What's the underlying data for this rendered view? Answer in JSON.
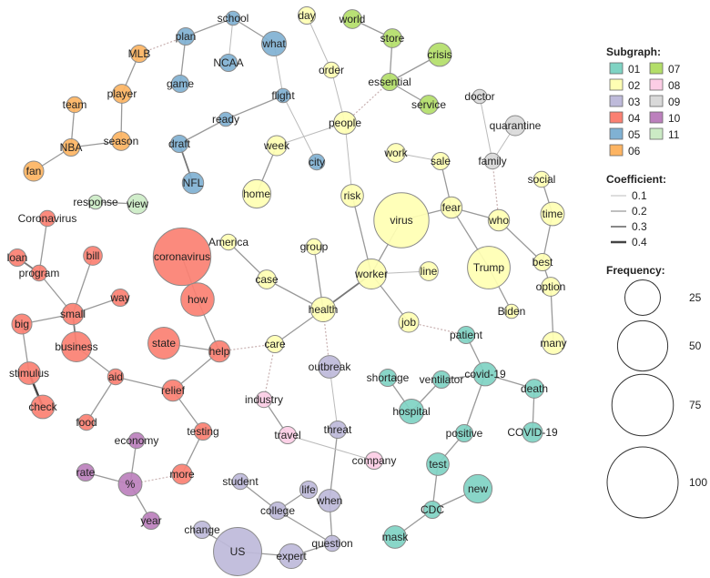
{
  "legend": {
    "subgraph_title": "Subgraph:",
    "subgraphs": [
      {
        "id": "01",
        "color": "#7fd3c3"
      },
      {
        "id": "02",
        "color": "#ffffb3"
      },
      {
        "id": "03",
        "color": "#bebada"
      },
      {
        "id": "04",
        "color": "#fb8072"
      },
      {
        "id": "05",
        "color": "#80b1d3"
      },
      {
        "id": "06",
        "color": "#fdb462"
      },
      {
        "id": "07",
        "color": "#b3de69"
      },
      {
        "id": "08",
        "color": "#fccde5"
      },
      {
        "id": "09",
        "color": "#d9d9d9"
      },
      {
        "id": "10",
        "color": "#bc80bd"
      },
      {
        "id": "11",
        "color": "#ccebc5"
      }
    ],
    "coefficient_title": "Coefficient:",
    "coefficients": [
      "0.1",
      "0.2",
      "0.3",
      "0.4"
    ],
    "frequency_title": "Frequency:",
    "frequencies": [
      "25",
      "50",
      "75",
      "100"
    ]
  },
  "nodes": [
    {
      "id": "school",
      "label": "school",
      "group": "05",
      "freq": 4
    },
    {
      "id": "plan",
      "label": "plan",
      "group": "05",
      "freq": 6
    },
    {
      "id": "what",
      "label": "what",
      "group": "05",
      "freq": 12
    },
    {
      "id": "ncaa",
      "label": "NCAA",
      "group": "05",
      "freq": 6
    },
    {
      "id": "game",
      "label": "game",
      "group": "05",
      "freq": 6
    },
    {
      "id": "flight",
      "label": "flight",
      "group": "05",
      "freq": 4
    },
    {
      "id": "ready",
      "label": "ready",
      "group": "05",
      "freq": 4
    },
    {
      "id": "draft",
      "label": "draft",
      "group": "05",
      "freq": 6
    },
    {
      "id": "nfl",
      "label": "NFL",
      "group": "05",
      "freq": 9
    },
    {
      "id": "city",
      "label": "city",
      "group": "05",
      "freq": 5
    },
    {
      "id": "mlb",
      "label": "MLB",
      "group": "06",
      "freq": 6
    },
    {
      "id": "player",
      "label": "player",
      "group": "06",
      "freq": 7
    },
    {
      "id": "team",
      "label": "team",
      "group": "06",
      "freq": 5
    },
    {
      "id": "season",
      "label": "season",
      "group": "06",
      "freq": 7
    },
    {
      "id": "nba",
      "label": "NBA",
      "group": "06",
      "freq": 6
    },
    {
      "id": "fan",
      "label": "fan",
      "group": "06",
      "freq": 8
    },
    {
      "id": "world",
      "label": "world",
      "group": "07",
      "freq": 7
    },
    {
      "id": "store",
      "label": "store",
      "group": "07",
      "freq": 7
    },
    {
      "id": "crisis",
      "label": "crisis",
      "group": "07",
      "freq": 11
    },
    {
      "id": "essential",
      "label": "essential",
      "group": "07",
      "freq": 6
    },
    {
      "id": "service",
      "label": "service",
      "group": "07",
      "freq": 7
    },
    {
      "id": "day",
      "label": "day",
      "group": "02",
      "freq": 6
    },
    {
      "id": "order",
      "label": "order",
      "group": "02",
      "freq": 5
    },
    {
      "id": "people",
      "label": "people",
      "group": "02",
      "freq": 10
    },
    {
      "id": "week",
      "label": "week",
      "group": "02",
      "freq": 8
    },
    {
      "id": "home",
      "label": "home",
      "group": "02",
      "freq": 16
    },
    {
      "id": "risk",
      "label": "risk",
      "group": "02",
      "freq": 10
    },
    {
      "id": "work",
      "label": "work",
      "group": "02",
      "freq": 7
    },
    {
      "id": "sale",
      "label": "sale",
      "group": "02",
      "freq": 6
    },
    {
      "id": "fear",
      "label": "fear",
      "group": "02",
      "freq": 9
    },
    {
      "id": "virus",
      "label": "virus",
      "group": "02",
      "freq": 60
    },
    {
      "id": "who",
      "label": "who",
      "group": "02",
      "freq": 9
    },
    {
      "id": "social",
      "label": "social",
      "group": "02",
      "freq": 5
    },
    {
      "id": "time",
      "label": "time",
      "group": "02",
      "freq": 11
    },
    {
      "id": "trump",
      "label": "Trump",
      "group": "02",
      "freq": 36
    },
    {
      "id": "best",
      "label": "best",
      "group": "02",
      "freq": 6
    },
    {
      "id": "option",
      "label": "option",
      "group": "02",
      "freq": 7
    },
    {
      "id": "biden",
      "label": "Biden",
      "group": "02",
      "freq": 4
    },
    {
      "id": "many",
      "label": "many",
      "group": "02",
      "freq": 10
    },
    {
      "id": "america",
      "label": "America",
      "group": "02",
      "freq": 5
    },
    {
      "id": "group",
      "label": "group",
      "group": "02",
      "freq": 5
    },
    {
      "id": "case",
      "label": "case",
      "group": "02",
      "freq": 7
    },
    {
      "id": "worker",
      "label": "worker",
      "group": "02",
      "freq": 18
    },
    {
      "id": "line",
      "label": "line",
      "group": "02",
      "freq": 7
    },
    {
      "id": "health",
      "label": "health",
      "group": "02",
      "freq": 12
    },
    {
      "id": "job",
      "label": "job",
      "group": "02",
      "freq": 8
    },
    {
      "id": "care",
      "label": "care",
      "group": "02",
      "freq": 6
    },
    {
      "id": "doctor",
      "label": "doctor",
      "group": "09",
      "freq": 4
    },
    {
      "id": "quarantine",
      "label": "quarantine",
      "group": "09",
      "freq": 8
    },
    {
      "id": "family",
      "label": "family",
      "group": "09",
      "freq": 5
    },
    {
      "id": "response",
      "label": "response",
      "group": "11",
      "freq": 4
    },
    {
      "id": "view",
      "label": "view",
      "group": "11",
      "freq": 8
    },
    {
      "id": "coronavirus_cap",
      "label": "Coronavirus",
      "group": "04",
      "freq": 5
    },
    {
      "id": "loan",
      "label": "loan",
      "group": "04",
      "freq": 6
    },
    {
      "id": "program",
      "label": "program",
      "group": "04",
      "freq": 5
    },
    {
      "id": "bill",
      "label": "bill",
      "group": "04",
      "freq": 7
    },
    {
      "id": "coronavirus",
      "label": "coronavirus",
      "group": "04",
      "freq": 66
    },
    {
      "id": "how",
      "label": "how",
      "group": "04",
      "freq": 22
    },
    {
      "id": "way",
      "label": "way",
      "group": "04",
      "freq": 6
    },
    {
      "id": "small",
      "label": "small",
      "group": "04",
      "freq": 9
    },
    {
      "id": "big",
      "label": "big",
      "group": "04",
      "freq": 8
    },
    {
      "id": "business",
      "label": "business",
      "group": "04",
      "freq": 18
    },
    {
      "id": "state",
      "label": "state",
      "group": "04",
      "freq": 20
    },
    {
      "id": "help",
      "label": "help",
      "group": "04",
      "freq": 9
    },
    {
      "id": "stimulus",
      "label": "stimulus",
      "group": "04",
      "freq": 10
    },
    {
      "id": "aid",
      "label": "aid",
      "group": "04",
      "freq": 5
    },
    {
      "id": "relief",
      "label": "relief",
      "group": "04",
      "freq": 9
    },
    {
      "id": "check",
      "label": "check",
      "group": "04",
      "freq": 11
    },
    {
      "id": "food",
      "label": "food",
      "group": "04",
      "freq": 5
    },
    {
      "id": "testing",
      "label": "testing",
      "group": "04",
      "freq": 6
    },
    {
      "id": "more",
      "label": "more",
      "group": "04",
      "freq": 8
    },
    {
      "id": "economy",
      "label": "economy",
      "group": "10",
      "freq": 5
    },
    {
      "id": "rate",
      "label": "rate",
      "group": "10",
      "freq": 6
    },
    {
      "id": "percent",
      "label": "%",
      "group": "10",
      "freq": 11
    },
    {
      "id": "year",
      "label": "year",
      "group": "10",
      "freq": 6
    },
    {
      "id": "outbreak",
      "label": "outbreak",
      "group": "03",
      "freq": 10
    },
    {
      "id": "threat",
      "label": "threat",
      "group": "03",
      "freq": 6
    },
    {
      "id": "student",
      "label": "student",
      "group": "03",
      "freq": 5
    },
    {
      "id": "life",
      "label": "life",
      "group": "03",
      "freq": 6
    },
    {
      "id": "college",
      "label": "college",
      "group": "03",
      "freq": 6
    },
    {
      "id": "when",
      "label": "when",
      "group": "03",
      "freq": 10
    },
    {
      "id": "change",
      "label": "change",
      "group": "03",
      "freq": 6
    },
    {
      "id": "us",
      "label": "US",
      "group": "03",
      "freq": 46
    },
    {
      "id": "expert",
      "label": "expert",
      "group": "03",
      "freq": 12
    },
    {
      "id": "question",
      "label": "question",
      "group": "03",
      "freq": 5
    },
    {
      "id": "industry",
      "label": "industry",
      "group": "08",
      "freq": 5
    },
    {
      "id": "travel",
      "label": "travel",
      "group": "08",
      "freq": 6
    },
    {
      "id": "company",
      "label": "company",
      "group": "08",
      "freq": 6
    },
    {
      "id": "patient",
      "label": "patient",
      "group": "01",
      "freq": 6
    },
    {
      "id": "shortage",
      "label": "shortage",
      "group": "01",
      "freq": 6
    },
    {
      "id": "ventilator",
      "label": "ventilator",
      "group": "01",
      "freq": 6
    },
    {
      "id": "covid19",
      "label": "covid-19",
      "group": "01",
      "freq": 11
    },
    {
      "id": "death",
      "label": "death",
      "group": "01",
      "freq": 7
    },
    {
      "id": "hospital",
      "label": "hospital",
      "group": "01",
      "freq": 12
    },
    {
      "id": "positive",
      "label": "positive",
      "group": "01",
      "freq": 6
    },
    {
      "id": "covid19_cap",
      "label": "COVID-19",
      "group": "01",
      "freq": 8
    },
    {
      "id": "test",
      "label": "test",
      "group": "01",
      "freq": 10
    },
    {
      "id": "new",
      "label": "new",
      "group": "01",
      "freq": 16
    },
    {
      "id": "cdc",
      "label": "CDC",
      "group": "01",
      "freq": 6
    },
    {
      "id": "mask",
      "label": "mask",
      "group": "01",
      "freq": 10
    }
  ],
  "edges": [
    {
      "source": "school",
      "target": "plan",
      "coef": 0.2
    },
    {
      "source": "school",
      "target": "what",
      "coef": 0.2
    },
    {
      "source": "school",
      "target": "ncaa",
      "coef": 0.1
    },
    {
      "source": "plan",
      "target": "game",
      "coef": 0.2
    },
    {
      "source": "plan",
      "target": "mlb",
      "coef": 0.1,
      "dotted": true
    },
    {
      "source": "what",
      "target": "flight",
      "coef": 0.1
    },
    {
      "source": "flight",
      "target": "ready",
      "coef": 0.2
    },
    {
      "source": "flight",
      "target": "city",
      "coef": 0.1
    },
    {
      "source": "ready",
      "target": "draft",
      "coef": 0.2
    },
    {
      "source": "draft",
      "target": "nfl",
      "coef": 0.3
    },
    {
      "source": "mlb",
      "target": "player",
      "coef": 0.2
    },
    {
      "source": "player",
      "target": "season",
      "coef": 0.2
    },
    {
      "source": "team",
      "target": "nba",
      "coef": 0.2
    },
    {
      "source": "season",
      "target": "nba",
      "coef": 0.2
    },
    {
      "source": "nba",
      "target": "fan",
      "coef": 0.2
    },
    {
      "source": "world",
      "target": "store",
      "coef": 0.2
    },
    {
      "source": "store",
      "target": "essential",
      "coef": 0.2
    },
    {
      "source": "crisis",
      "target": "essential",
      "coef": 0.2
    },
    {
      "source": "essential",
      "target": "service",
      "coef": 0.2
    },
    {
      "source": "essential",
      "target": "people",
      "coef": 0.1,
      "dotted": true
    },
    {
      "source": "day",
      "target": "order",
      "coef": 0.1
    },
    {
      "source": "order",
      "target": "people",
      "coef": 0.1
    },
    {
      "source": "people",
      "target": "week",
      "coef": 0.1
    },
    {
      "source": "people",
      "target": "risk",
      "coef": 0.1
    },
    {
      "source": "week",
      "target": "home",
      "coef": 0.2
    },
    {
      "source": "risk",
      "target": "worker",
      "coef": 0.2
    },
    {
      "source": "work",
      "target": "sale",
      "coef": 0.1
    },
    {
      "source": "sale",
      "target": "fear",
      "coef": 0.2
    },
    {
      "source": "fear",
      "target": "virus",
      "coef": 0.2
    },
    {
      "source": "fear",
      "target": "who",
      "coef": 0.2
    },
    {
      "source": "fear",
      "target": "trump",
      "coef": 0.2
    },
    {
      "source": "who",
      "target": "best",
      "coef": 0.2
    },
    {
      "source": "who",
      "target": "family",
      "coef": 0.1,
      "dotted": true
    },
    {
      "source": "social",
      "target": "time",
      "coef": 0.2
    },
    {
      "source": "time",
      "target": "best",
      "coef": 0.2
    },
    {
      "source": "best",
      "target": "option",
      "coef": 0.2
    },
    {
      "source": "option",
      "target": "many",
      "coef": 0.2
    },
    {
      "source": "trump",
      "target": "biden",
      "coef": 0.2
    },
    {
      "source": "doctor",
      "target": "family",
      "coef": 0.1
    },
    {
      "source": "quarantine",
      "target": "family",
      "coef": 0.1
    },
    {
      "source": "response",
      "target": "view",
      "coef": 0.2
    },
    {
      "source": "america",
      "target": "case",
      "coef": 0.2
    },
    {
      "source": "case",
      "target": "health",
      "coef": 0.2
    },
    {
      "source": "group",
      "target": "health",
      "coef": 0.2
    },
    {
      "source": "virus",
      "target": "worker",
      "coef": 0.2
    },
    {
      "source": "worker",
      "target": "line",
      "coef": 0.1
    },
    {
      "source": "worker",
      "target": "health",
      "coef": 0.3
    },
    {
      "source": "worker",
      "target": "job",
      "coef": 0.2
    },
    {
      "source": "health",
      "target": "care",
      "coef": 0.2
    },
    {
      "source": "health",
      "target": "outbreak",
      "coef": 0.1,
      "dotted": true
    },
    {
      "source": "job",
      "target": "patient",
      "coef": 0.1,
      "dotted": true
    },
    {
      "source": "care",
      "target": "help",
      "coef": 0.1,
      "dotted": true
    },
    {
      "source": "care",
      "target": "industry",
      "coef": 0.1,
      "dotted": true
    },
    {
      "source": "coronavirus_cap",
      "target": "program",
      "coef": 0.2
    },
    {
      "source": "loan",
      "target": "program",
      "coef": 0.3
    },
    {
      "source": "program",
      "target": "small",
      "coef": 0.2
    },
    {
      "source": "bill",
      "target": "small",
      "coef": 0.2
    },
    {
      "source": "way",
      "target": "small",
      "coef": 0.2
    },
    {
      "source": "small",
      "target": "big",
      "coef": 0.2
    },
    {
      "source": "small",
      "target": "business",
      "coef": 0.3
    },
    {
      "source": "big",
      "target": "stimulus",
      "coef": 0.2
    },
    {
      "source": "business",
      "target": "aid",
      "coef": 0.2
    },
    {
      "source": "stimulus",
      "target": "check",
      "coef": 0.4
    },
    {
      "source": "coronavirus",
      "target": "how",
      "coef": 0.2
    },
    {
      "source": "how",
      "target": "help",
      "coef": 0.2
    },
    {
      "source": "state",
      "target": "help",
      "coef": 0.2
    },
    {
      "source": "help",
      "target": "relief",
      "coef": 0.2
    },
    {
      "source": "aid",
      "target": "relief",
      "coef": 0.2
    },
    {
      "source": "aid",
      "target": "food",
      "coef": 0.2
    },
    {
      "source": "relief",
      "target": "testing",
      "coef": 0.2
    },
    {
      "source": "testing",
      "target": "more",
      "coef": 0.2
    },
    {
      "source": "more",
      "target": "percent",
      "coef": 0.1,
      "dotted": true
    },
    {
      "source": "economy",
      "target": "percent",
      "coef": 0.2
    },
    {
      "source": "rate",
      "target": "percent",
      "coef": 0.2
    },
    {
      "source": "percent",
      "target": "year",
      "coef": 0.2
    },
    {
      "source": "outbreak",
      "target": "threat",
      "coef": 0.1
    },
    {
      "source": "threat",
      "target": "when",
      "coef": 0.2
    },
    {
      "source": "student",
      "target": "college",
      "coef": 0.2
    },
    {
      "source": "life",
      "target": "college",
      "coef": 0.2
    },
    {
      "source": "college",
      "target": "question",
      "coef": 0.2
    },
    {
      "source": "change",
      "target": "us",
      "coef": 0.2
    },
    {
      "source": "us",
      "target": "expert",
      "coef": 0.2
    },
    {
      "source": "expert",
      "target": "question",
      "coef": 0.2
    },
    {
      "source": "when",
      "target": "question",
      "coef": 0.2
    },
    {
      "source": "industry",
      "target": "travel",
      "coef": 0.2
    },
    {
      "source": "travel",
      "target": "company",
      "coef": 0.1
    },
    {
      "source": "patient",
      "target": "covid19",
      "coef": 0.2
    },
    {
      "source": "shortage",
      "target": "hospital",
      "coef": 0.2
    },
    {
      "source": "ventilator",
      "target": "hospital",
      "coef": 0.2
    },
    {
      "source": "ventilator",
      "target": "covid19",
      "coef": 0.2
    },
    {
      "source": "covid19",
      "target": "death",
      "coef": 0.2
    },
    {
      "source": "covid19",
      "target": "positive",
      "coef": 0.2
    },
    {
      "source": "death",
      "target": "covid19_cap",
      "coef": 0.2
    },
    {
      "source": "positive",
      "target": "test",
      "coef": 0.2
    },
    {
      "source": "test",
      "target": "cdc",
      "coef": 0.2
    },
    {
      "source": "new",
      "target": "cdc",
      "coef": 0.2
    },
    {
      "source": "cdc",
      "target": "mask",
      "coef": 0.2
    }
  ]
}
